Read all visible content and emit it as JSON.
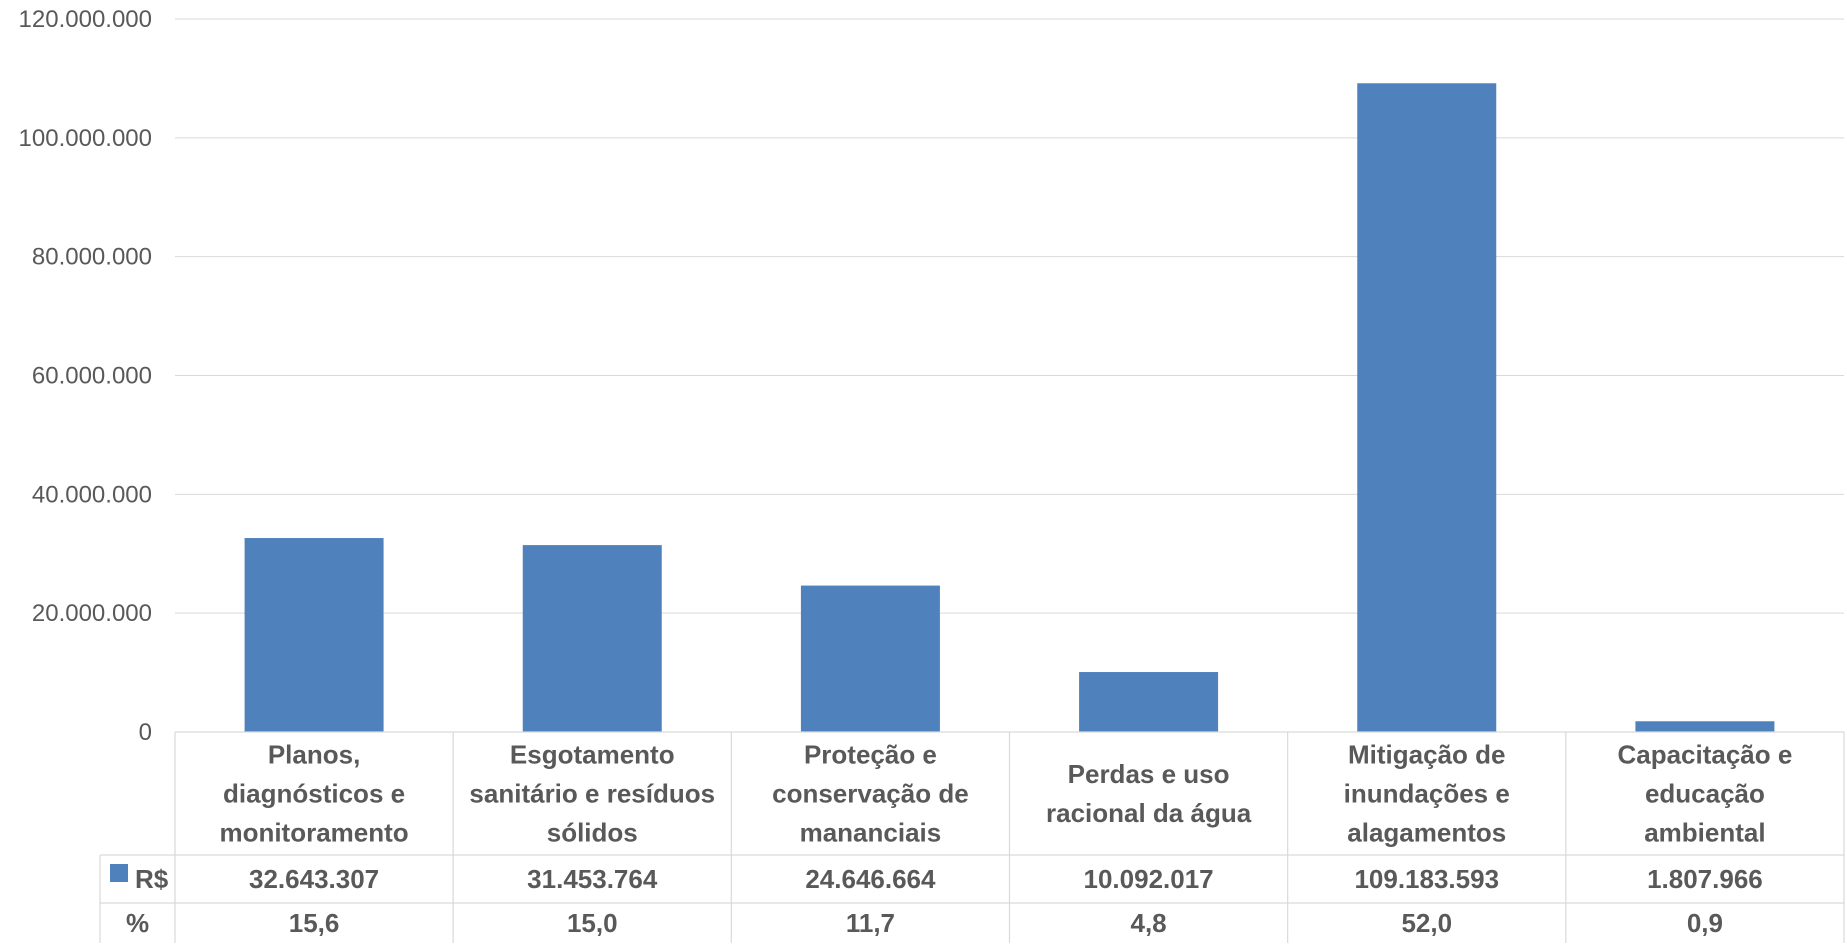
{
  "chart_data": {
    "type": "bar",
    "categories": [
      [
        "Planos,",
        "diagnósticos e",
        "monitoramento"
      ],
      [
        "Esgotamento",
        "sanitário e resíduos",
        "sólidos"
      ],
      [
        "Proteção e",
        "conservação de",
        "mananciais"
      ],
      [
        "Perdas e uso",
        "racional da água"
      ],
      [
        "Mitigação de",
        "inundações e",
        "alagamentos"
      ],
      [
        "Capacitação e",
        "educação",
        "ambiental"
      ]
    ],
    "series": [
      {
        "name": "R$",
        "values": [
          32643307,
          31453764,
          24646664,
          10092017,
          109183593,
          1807966
        ],
        "display_values": [
          "32.643.307",
          "31.453.764",
          "24.646.664",
          "10.092.017",
          "109.183.593",
          "1.807.966"
        ],
        "color": "#4f81bd"
      }
    ],
    "table_rows": [
      {
        "label": "R$",
        "legend_key": true,
        "values": [
          "32.643.307",
          "31.453.764",
          "24.646.664",
          "10.092.017",
          "109.183.593",
          "1.807.966"
        ]
      },
      {
        "label": "%",
        "legend_key": false,
        "values": [
          "15,6",
          "15,0",
          "11,7",
          "4,8",
          "52,0",
          "0,9"
        ]
      }
    ],
    "ylim": [
      0,
      120000000
    ],
    "yticks": [
      0,
      20000000,
      40000000,
      60000000,
      80000000,
      100000000,
      120000000
    ],
    "ytick_labels": [
      "0",
      "20.000.000",
      "40.000.000",
      "60.000.000",
      "80.000.000",
      "100.000.000",
      "120.000.000"
    ],
    "grid": true,
    "legend": "data-table",
    "colors": {
      "bar": "#4f81bd",
      "grid": "#d9d9d9",
      "text": "#595959"
    }
  }
}
